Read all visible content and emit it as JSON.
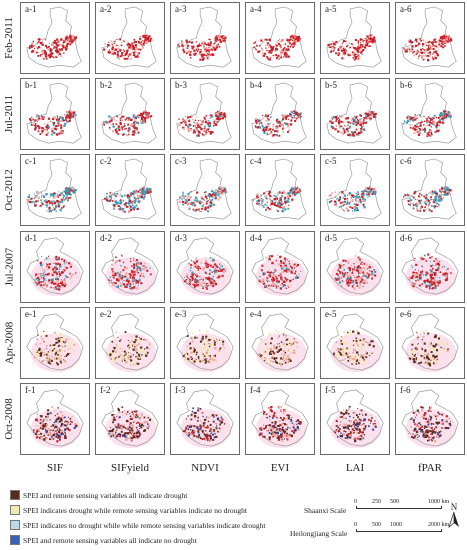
{
  "rows": [
    {
      "label": "Feb-2011",
      "map": "shaanxi",
      "scheme": "feb",
      "panels": [
        "a-1",
        "a-2",
        "a-3",
        "a-4",
        "a-5",
        "a-6"
      ]
    },
    {
      "label": "Jul-2011",
      "map": "shaanxi",
      "scheme": "jul",
      "panels": [
        "b-1",
        "b-2",
        "b-3",
        "b-4",
        "b-5",
        "b-6"
      ]
    },
    {
      "label": "Oct-2012",
      "map": "shaanxi",
      "scheme": "oct",
      "panels": [
        "c-1",
        "c-2",
        "c-3",
        "c-4",
        "c-5",
        "c-6"
      ]
    },
    {
      "label": "Jul-2007",
      "map": "heilongjiang",
      "scheme": "hjul",
      "panels": [
        "d-1",
        "d-2",
        "d-3",
        "d-4",
        "d-5",
        "d-6"
      ]
    },
    {
      "label": "Apr-2008",
      "map": "heilongjiang",
      "scheme": "hapr",
      "panels": [
        "e-1",
        "e-2",
        "e-3",
        "e-4",
        "e-5",
        "e-6"
      ]
    },
    {
      "label": "Oct-2008",
      "map": "heilongjiang",
      "scheme": "hoct",
      "panels": [
        "f-1",
        "f-2",
        "f-3",
        "f-4",
        "f-5",
        "f-6"
      ]
    }
  ],
  "columns": [
    "SIF",
    "SIFyield",
    "NDVI",
    "EVI",
    "LAI",
    "fPAR"
  ],
  "legend": [
    {
      "color": "#5b2a1c",
      "label": "SPEI and remote sensing variables all indicate drought"
    },
    {
      "color": "#f4e8b4",
      "label": "SPEI indicates drought while remote sensing variables indicate no drought"
    },
    {
      "color": "#bcd9ec",
      "label": "SPEI indicates no drought while while remote sensing variables indicate drought"
    },
    {
      "color": "#3a5fb5",
      "label": "SPEI and remote sensing variables all indicate no drought"
    }
  ],
  "scales": {
    "shaanxi": {
      "label": "Shaanxi Scale",
      "ticks": [
        "0",
        "250",
        "500",
        "1000 km"
      ]
    },
    "heilongjiang": {
      "label": "Heilongjiang Scale",
      "ticks": [
        "0",
        "500",
        "1000",
        "2000 km"
      ]
    }
  },
  "north_label": "N",
  "colors": {
    "drought_red": "#c8202a",
    "light_red": "#f2a9a0",
    "teal": "#3b9bb7",
    "pink_halo": "#f7c8e0",
    "dark_brown": "#5b2a1c",
    "cream": "#f4e8b4",
    "navy": "#2d3f93"
  }
}
